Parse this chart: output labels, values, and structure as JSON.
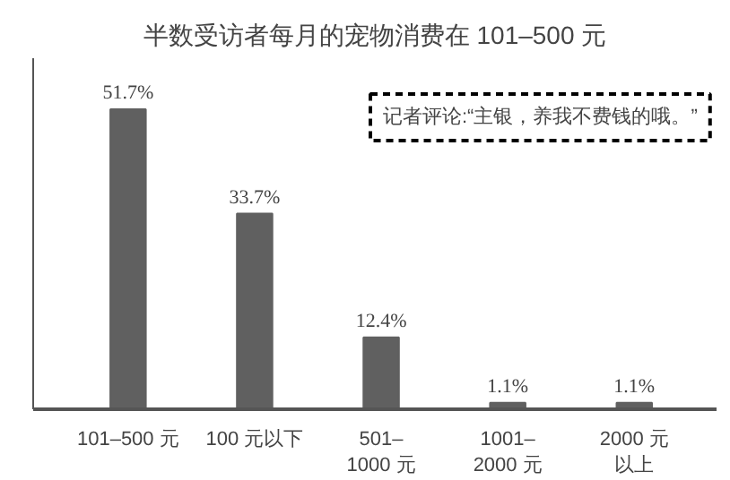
{
  "chart_data": {
    "type": "bar",
    "title": "半数受访者每月的宠物消费在 101–500 元",
    "categories": [
      "101–500 元",
      "100 元以下",
      "501–\n1000 元",
      "1001–\n2000 元",
      "2000 元以上"
    ],
    "values": [
      51.7,
      33.7,
      12.4,
      1.1,
      1.1
    ],
    "color": "#606060",
    "value_labels": [
      "51.7%",
      "33.7%",
      "12.4%",
      "1.1%",
      "1.1%"
    ],
    "annotations": [
      "记者评论:“主银，养我不费钱的哦。”"
    ],
    "grid": false
  }
}
